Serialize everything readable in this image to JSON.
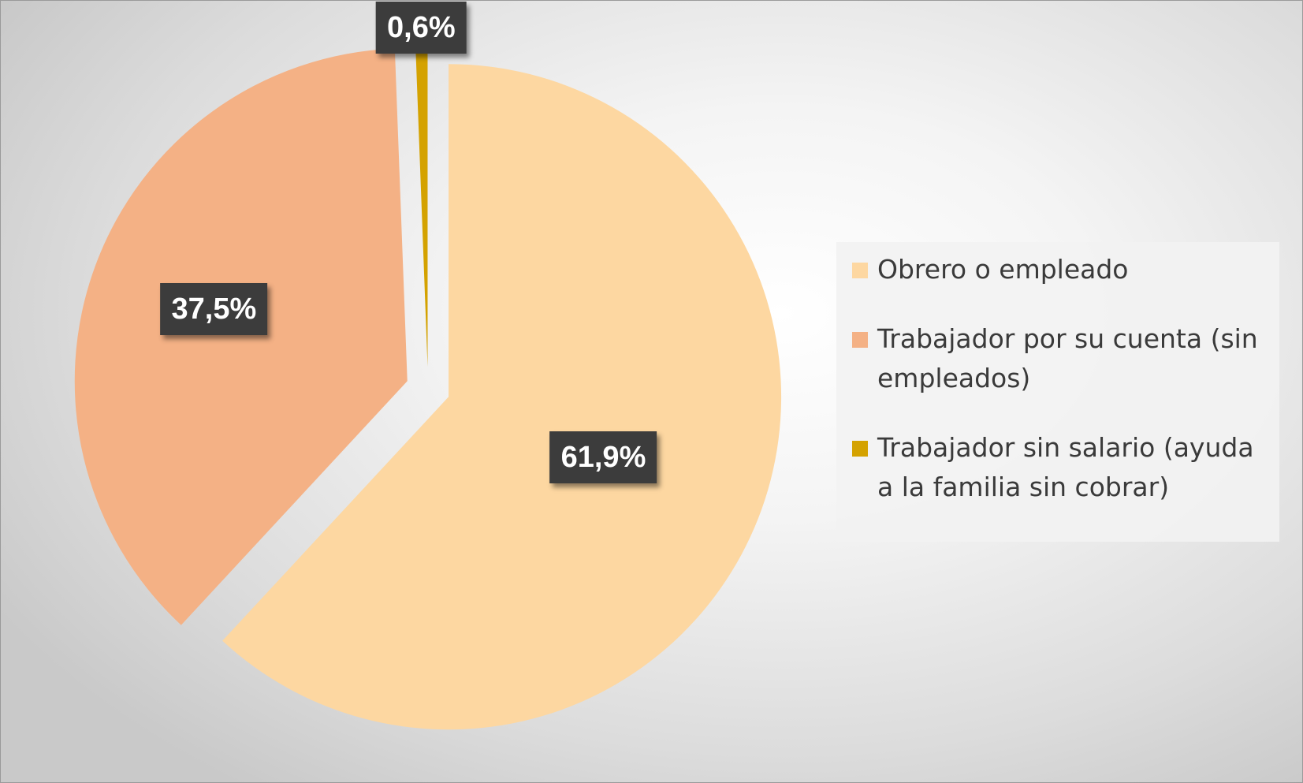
{
  "chart_data": {
    "type": "pie",
    "title": "",
    "categories": [
      "Obrero o empleado",
      "Trabajador por su cuenta (sin empleados)",
      "Trabajador sin salario (ayuda a la familia sin cobrar)"
    ],
    "values": [
      61.9,
      37.5,
      0.6
    ],
    "value_labels": [
      "61,9%",
      "37,5%",
      "0,6%"
    ],
    "colors": [
      "#FDD7A1",
      "#F4B185",
      "#D4A200"
    ],
    "exploded": true,
    "legend_position": "right"
  }
}
